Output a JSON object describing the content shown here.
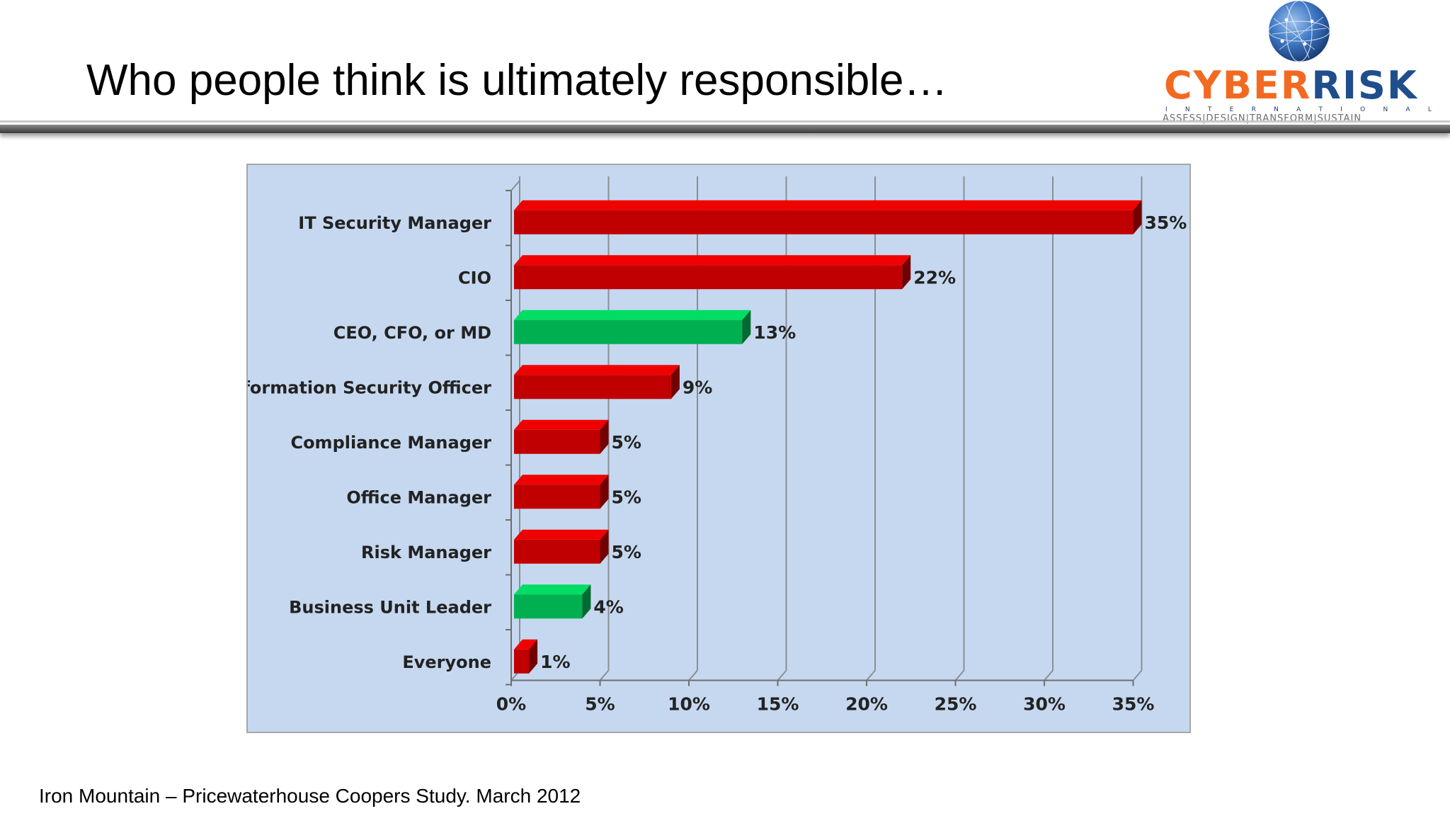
{
  "slide": {
    "title": "Who people think is ultimately responsible…",
    "source": "Iron Mountain – Pricewaterhouse Coopers Study. March 2012"
  },
  "logo": {
    "name_part1": "CYBER",
    "name_part2": "RISK",
    "subtitle_letters": [
      "I",
      "N",
      "T",
      "E",
      "R",
      "N",
      "A",
      "T",
      "I",
      "O",
      "N",
      "A",
      "L"
    ],
    "tagline": "ASSESS|DESIGN|TRANSFORM|SUSTAIN",
    "colors": {
      "cyber": "#f26a21",
      "risk": "#1f4e8c"
    }
  },
  "chart_data": {
    "type": "bar",
    "orientation": "horizontal",
    "categories": [
      "IT Security Manager",
      "CIO",
      "CEO, CFO, or MD",
      "Information Security Officer",
      "Compliance Manager",
      "Office Manager",
      "Risk Manager",
      "Business Unit Leader",
      "Everyone"
    ],
    "values": [
      35,
      22,
      13,
      9,
      5,
      5,
      5,
      4,
      1
    ],
    "data_labels": [
      "35%",
      "22%",
      "13%",
      "9%",
      "5%",
      "5%",
      "5%",
      "4%",
      "1%"
    ],
    "bar_colors": [
      "#c00000",
      "#c00000",
      "#00b050",
      "#c00000",
      "#c00000",
      "#c00000",
      "#c00000",
      "#00b050",
      "#c00000"
    ],
    "xlim": [
      0,
      35
    ],
    "xticks": [
      0,
      5,
      10,
      15,
      20,
      25,
      30,
      35
    ],
    "xtick_labels": [
      "0%",
      "5%",
      "10%",
      "15%",
      "20%",
      "25%",
      "30%",
      "35%"
    ],
    "grid": true,
    "legend": "none",
    "background": "#c6d8ef"
  }
}
